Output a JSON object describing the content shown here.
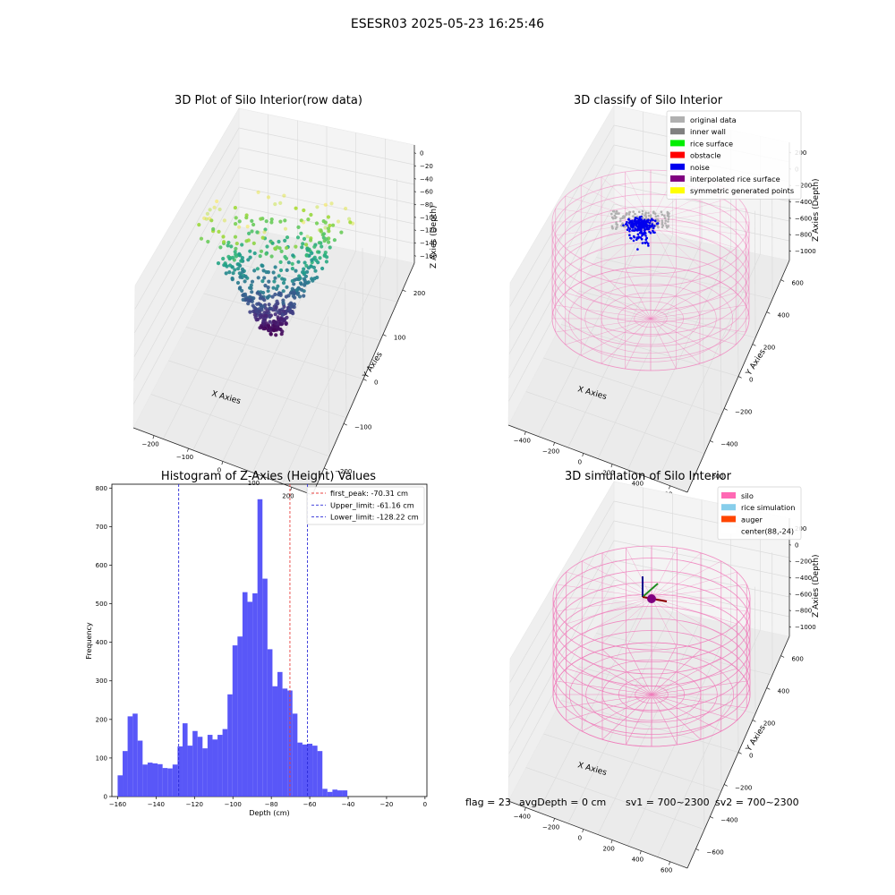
{
  "suptitle": "ESESR03 2025-05-23 16:25:46",
  "footer": {
    "flag": "flag = 23",
    "avg_depth": "avgDepth = 0 cm",
    "sv1": "sv1 = 700~2300",
    "sv2": "sv2 = 700~2300"
  },
  "colors": {
    "hist_bar": "#4b49f7",
    "peak_line": "#e8413f",
    "limit_line": "#2a2ad8",
    "silo_wire": "#f07aba",
    "noise": "#0000ee",
    "original": "#b0b0b0"
  },
  "chart_data": [
    {
      "type": "scatter",
      "title": "3D Plot of Silo Interior(row data)",
      "xlabel": "X Axies",
      "ylabel": "Y Axies",
      "zlabel": "Z Axies (Depth)",
      "x_ticks": [
        "−200",
        "−100",
        "0",
        "100",
        "200"
      ],
      "y_ticks": [
        "−200",
        "−100",
        "0",
        "100",
        "200"
      ],
      "z_ticks": [
        "0",
        "−20",
        "−40",
        "−60",
        "−80",
        "−100",
        "−120",
        "−140",
        "−160"
      ],
      "colormap": "viridis",
      "grid": true
    },
    {
      "type": "scatter",
      "title": "3D classify of Silo Interior",
      "xlabel": "X Axies",
      "ylabel": "Y Axies",
      "zlabel": "Z Axies (Depth)",
      "x_ticks": [
        "−400",
        "−200",
        "0",
        "200",
        "400",
        "600"
      ],
      "y_ticks": [
        "−600",
        "−400",
        "−200",
        "0",
        "200",
        "400",
        "600"
      ],
      "z_ticks": [
        "200",
        "0",
        "−200",
        "−400",
        "−600",
        "−800",
        "−1000"
      ],
      "legend_position": "top-right",
      "legend": [
        {
          "label": "original data",
          "color": "#b0b0b0"
        },
        {
          "label": "inner wall",
          "color": "#808080"
        },
        {
          "label": "rice surface",
          "color": "#00ee00"
        },
        {
          "label": "obstacle",
          "color": "#ff0000"
        },
        {
          "label": "noise",
          "color": "#0000ee"
        },
        {
          "label": "interpolated rice surface",
          "color": "#800080"
        },
        {
          "label": "symmetric generated points",
          "color": "#ffff00"
        }
      ],
      "grid": true
    },
    {
      "type": "bar",
      "title": "Histogram of Z-Axies (Height) Values",
      "xlabel": "Depth (cm)",
      "ylabel": "Frequency",
      "xlim": [
        -163,
        1
      ],
      "ylim": [
        0,
        810
      ],
      "x_ticks": [
        -160,
        -140,
        -120,
        -100,
        -80,
        -60,
        -40,
        -20,
        0
      ],
      "y_ticks": [
        0,
        100,
        200,
        300,
        400,
        500,
        600,
        700,
        800
      ],
      "bin_start": -160,
      "bin_width": 2.6,
      "counts": [
        55,
        118,
        208,
        215,
        145,
        83,
        88,
        86,
        84,
        74,
        73,
        83,
        130,
        190,
        132,
        170,
        155,
        125,
        160,
        148,
        160,
        175,
        265,
        392,
        415,
        530,
        505,
        527,
        771,
        565,
        382,
        286,
        323,
        280,
        275,
        215,
        140,
        135,
        137,
        132,
        118,
        20,
        12,
        18,
        16,
        16
      ],
      "vlines": [
        {
          "label": "first_peak: -70.31 cm",
          "x": -70.31,
          "color": "#e8413f"
        },
        {
          "label": "Upper_limit: -61.16 cm",
          "x": -61.16,
          "color": "#2a2ad8"
        },
        {
          "label": "Lower_limit: -128.22 cm",
          "x": -128.22,
          "color": "#2a2ad8"
        }
      ],
      "legend_position": "top-right"
    },
    {
      "type": "scatter",
      "title": "3D simulation of Silo Interior",
      "xlabel": "X Axies",
      "ylabel": "Y Axies",
      "zlabel": "Z Axies (Depth)",
      "x_ticks": [
        "−400",
        "−200",
        "0",
        "200",
        "400",
        "600"
      ],
      "y_ticks": [
        "−600",
        "−400",
        "−200",
        "0",
        "200",
        "400",
        "600"
      ],
      "z_ticks": [
        "200",
        "0",
        "−200",
        "−400",
        "−600",
        "−800",
        "−1000"
      ],
      "legend_position": "top-right",
      "legend": [
        {
          "label": "silo",
          "color": "#ff69b4"
        },
        {
          "label": "rice simulation",
          "color": "#87ceeb"
        },
        {
          "label": "auger",
          "color": "#ff4500"
        },
        {
          "label": "center(88,-24)",
          "color": "#ffffff"
        }
      ],
      "grid": true
    }
  ]
}
